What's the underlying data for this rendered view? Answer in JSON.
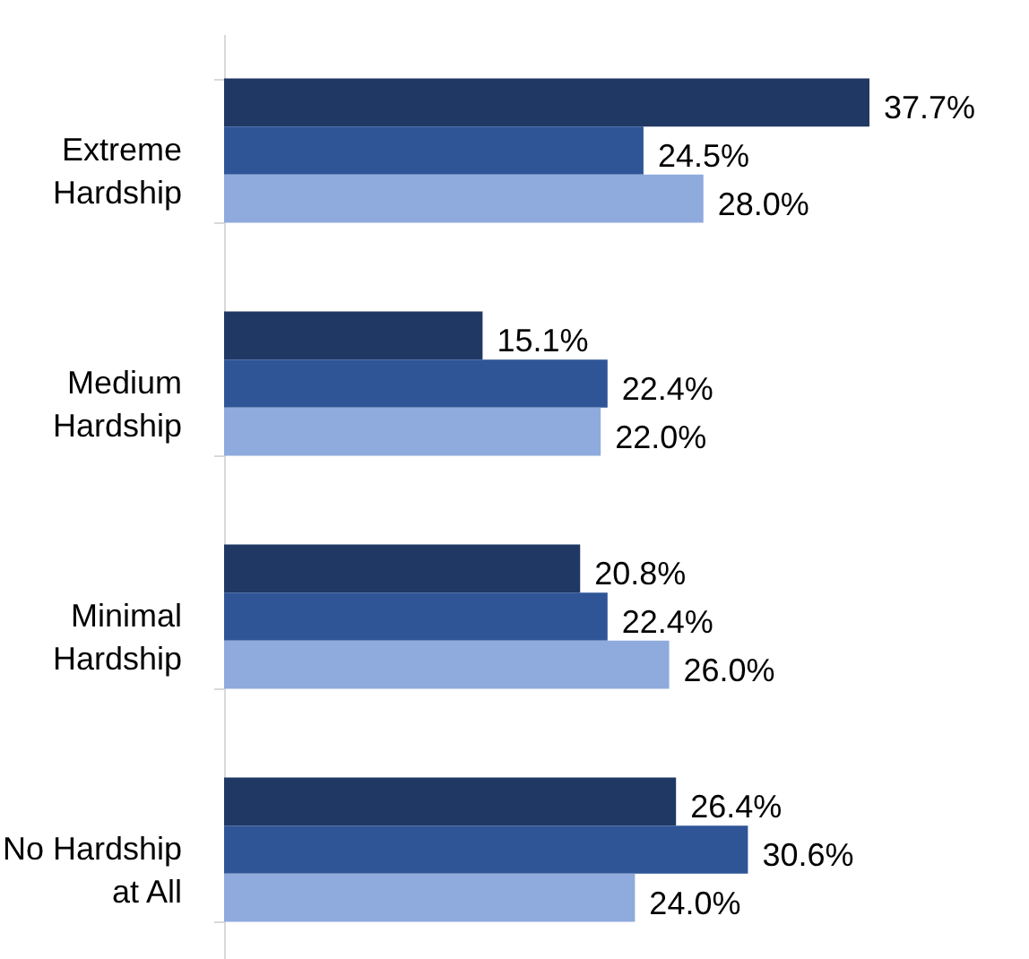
{
  "chart_data": {
    "type": "bar",
    "orientation": "horizontal",
    "categories": [
      "Extreme Hardship",
      "Medium Hardship",
      "Minimal Hardship",
      "No Hardship at All"
    ],
    "series": [
      {
        "color": "#203864",
        "values": [
          37.7,
          15.1,
          20.8,
          26.4
        ],
        "value_labels": [
          "37.7%",
          "15.1%",
          "20.8%",
          "26.4%"
        ]
      },
      {
        "color": "#2f5597",
        "values": [
          24.5,
          22.4,
          22.4,
          30.6
        ],
        "value_labels": [
          "24.5%",
          "22.4%",
          "22.4%",
          "30.6%"
        ]
      },
      {
        "color": "#8faadc",
        "values": [
          28.0,
          22.0,
          26.0,
          24.0
        ],
        "value_labels": [
          "28.0%",
          "22.0%",
          "26.0%",
          "24.0%"
        ]
      }
    ]
  }
}
